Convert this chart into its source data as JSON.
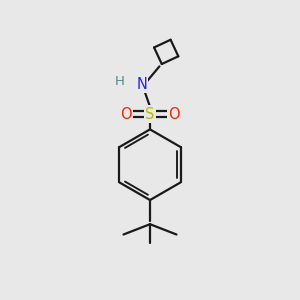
{
  "background_color": "#e8e8e8",
  "bond_color": "#1a1a1a",
  "atom_colors": {
    "S": "#b8b800",
    "O": "#ff2200",
    "N": "#2222ff",
    "H": "#558888",
    "C": "#1a1a1a"
  },
  "figsize": [
    3.0,
    3.0
  ],
  "dpi": 100
}
